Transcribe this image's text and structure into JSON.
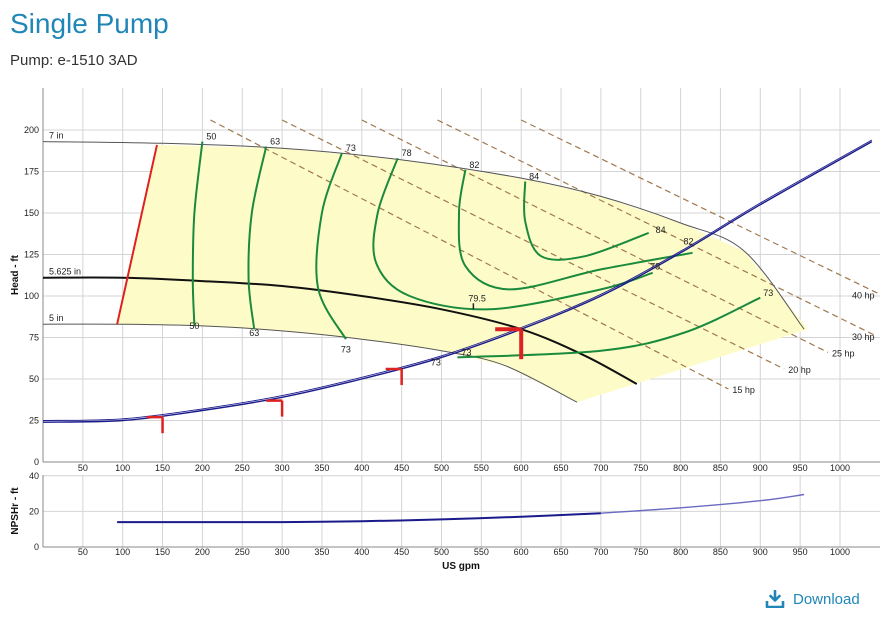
{
  "page": {
    "title": "Single Pump",
    "subtitle": "Pump: e-1510 3AD",
    "download_label": "Download"
  },
  "colors": {
    "title": "#1f86b7",
    "efficiency": "#1a8a3c",
    "system": "#1a1a8c",
    "operating_region": "#fdfcc8",
    "horsepower": "#a07850",
    "min_flow": "#dd2222",
    "markers": "#dd2222"
  },
  "chart_data": [
    {
      "type": "line",
      "name": "head",
      "ylabel": "Head - ft",
      "xlim": [
        0,
        1050
      ],
      "ylim": [
        0,
        200
      ],
      "xticks": [
        50,
        100,
        150,
        200,
        250,
        300,
        350,
        400,
        450,
        500,
        550,
        600,
        650,
        700,
        750,
        800,
        850,
        900,
        950,
        1000
      ],
      "yticks": [
        0,
        25,
        50,
        75,
        100,
        125,
        150,
        175,
        200
      ],
      "grid": true,
      "impeller_curves": [
        {
          "label": "7 in",
          "points": [
            [
              0,
              193
            ],
            [
              150,
              192
            ],
            [
              300,
              189
            ],
            [
              450,
              182
            ],
            [
              600,
              171
            ],
            [
              700,
              160
            ],
            [
              800,
              144
            ],
            [
              880,
              127
            ],
            [
              955,
              80
            ]
          ]
        },
        {
          "label": "5.625 in",
          "points": [
            [
              0,
              111
            ],
            [
              100,
              111
            ],
            [
              200,
              109
            ],
            [
              300,
              106
            ],
            [
              400,
              100
            ],
            [
              500,
              92
            ],
            [
              600,
              80
            ],
            [
              680,
              64
            ],
            [
              745,
              47
            ]
          ]
        },
        {
          "label": "5 in",
          "points": [
            [
              0,
              83
            ],
            [
              100,
              83
            ],
            [
              200,
              82
            ],
            [
              300,
              79
            ],
            [
              400,
              74
            ],
            [
              500,
              67
            ],
            [
              580,
              58
            ],
            [
              670,
              36
            ]
          ]
        }
      ],
      "min_flow_line": {
        "points": [
          [
            93,
            83
          ],
          [
            143,
            191
          ]
        ]
      },
      "operating_region": [
        [
          93,
          83
        ],
        [
          143,
          191
        ],
        [
          300,
          189
        ],
        [
          450,
          182
        ],
        [
          600,
          171
        ],
        [
          700,
          160
        ],
        [
          800,
          144
        ],
        [
          880,
          127
        ],
        [
          960,
          80
        ],
        [
          670,
          36
        ],
        [
          580,
          58
        ],
        [
          500,
          67
        ],
        [
          400,
          74
        ],
        [
          300,
          79
        ],
        [
          200,
          82
        ],
        [
          100,
          83
        ]
      ],
      "system_curve": {
        "points": [
          [
            0,
            24
          ],
          [
            100,
            25
          ],
          [
            200,
            31
          ],
          [
            300,
            39
          ],
          [
            400,
            50
          ],
          [
            500,
            63
          ],
          [
            600,
            80
          ],
          [
            700,
            100
          ],
          [
            800,
            126
          ],
          [
            900,
            155
          ],
          [
            1040,
            193
          ]
        ]
      },
      "efficiency_contours": [
        {
          "label": "50",
          "points": [
            [
              200,
              193
            ],
            [
              190,
              150
            ],
            [
              188,
              110
            ],
            [
              190,
              82
            ]
          ]
        },
        {
          "label": "63",
          "points": [
            [
              280,
              190
            ],
            [
              262,
              150
            ],
            [
              258,
              110
            ],
            [
              265,
              80
            ]
          ]
        },
        {
          "label": "73",
          "points": [
            [
              375,
              186
            ],
            [
              350,
              150
            ],
            [
              345,
              105
            ],
            [
              380,
              74
            ]
          ],
          "label2": "73"
        },
        {
          "label": "78",
          "points": [
            [
              445,
              183
            ],
            [
              420,
              150
            ],
            [
              418,
              120
            ],
            [
              460,
              100
            ],
            [
              560,
              92
            ],
            [
              700,
              104
            ],
            [
              765,
              114
            ]
          ],
          "label2": "78"
        },
        {
          "label": "82",
          "points": [
            [
              530,
              176
            ],
            [
              522,
              150
            ],
            [
              530,
              118
            ],
            [
              585,
              104
            ],
            [
              700,
              116
            ],
            [
              815,
              126
            ]
          ],
          "label2": "82"
        },
        {
          "label": "84",
          "points": [
            [
              605,
              169
            ],
            [
              605,
              145
            ],
            [
              625,
              124
            ],
            [
              680,
              124
            ],
            [
              760,
              138
            ]
          ],
          "label2": "84"
        },
        {
          "label": "73",
          "points": [
            [
              520,
              63
            ],
            [
              700,
              67
            ],
            [
              805,
              78
            ],
            [
              900,
              99
            ]
          ],
          "label2": "73"
        }
      ],
      "efficiency_point": {
        "label": "79.5",
        "x": 540,
        "y": 92
      },
      "horsepower_lines": [
        {
          "label": "15 hp",
          "points": [
            [
              210,
              206
            ],
            [
              860,
              44
            ]
          ]
        },
        {
          "label": "20 hp",
          "points": [
            [
              300,
              206
            ],
            [
              930,
              56
            ]
          ]
        },
        {
          "label": "25 hp",
          "points": [
            [
              400,
              206
            ],
            [
              985,
              66
            ]
          ]
        },
        {
          "label": "30 hp",
          "points": [
            [
              495,
              206
            ],
            [
              1045,
              76
            ]
          ]
        },
        {
          "label": "40 hp",
          "points": [
            [
              600,
              206
            ],
            [
              1050,
              101
            ]
          ]
        }
      ],
      "bep_markers": [
        {
          "x": 150,
          "y": 27
        },
        {
          "x": 300,
          "y": 37
        },
        {
          "x": 450,
          "y": 56
        },
        {
          "x": 600,
          "y": 80
        }
      ]
    },
    {
      "type": "line",
      "name": "npsh",
      "ylabel": "NPSHr - ft",
      "xlabel": "US gpm",
      "xlim": [
        0,
        1050
      ],
      "ylim": [
        0,
        40
      ],
      "xticks": [
        50,
        100,
        150,
        200,
        250,
        300,
        350,
        400,
        450,
        500,
        550,
        600,
        650,
        700,
        750,
        800,
        850,
        900,
        950,
        1000
      ],
      "yticks": [
        0,
        20,
        40
      ],
      "grid": true,
      "series": [
        {
          "points": [
            [
              93,
              14
            ],
            [
              200,
              14
            ],
            [
              300,
              14
            ],
            [
              400,
              14.5
            ],
            [
              500,
              15.5
            ],
            [
              600,
              17
            ],
            [
              700,
              19
            ],
            [
              800,
              22
            ],
            [
              900,
              26
            ],
            [
              955,
              29.5
            ]
          ]
        }
      ]
    }
  ]
}
